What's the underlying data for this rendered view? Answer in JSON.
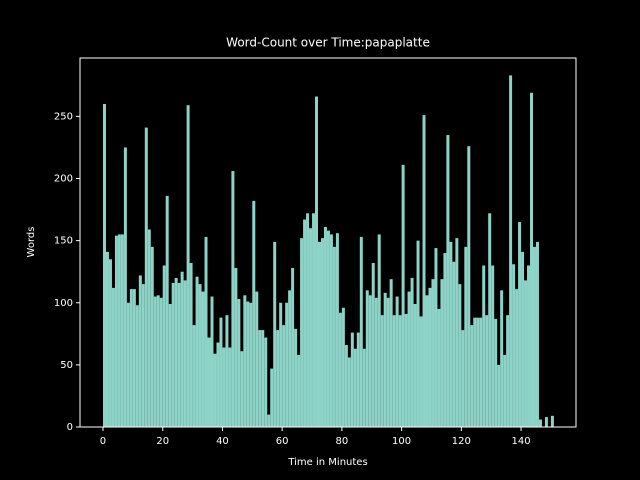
{
  "chart_data": {
    "type": "bar",
    "title": "Word-Count over Time:papaplatte",
    "x_label": "Time in Minutes",
    "y_label": "Words",
    "color": "#8dd3c7",
    "x": [
      0,
      1,
      2,
      3,
      4,
      5,
      6,
      7,
      8,
      9,
      10,
      11,
      12,
      13,
      14,
      15,
      16,
      17,
      18,
      19,
      20,
      21,
      22,
      23,
      24,
      25,
      26,
      27,
      28,
      29,
      30,
      31,
      32,
      33,
      34,
      35,
      36,
      37,
      38,
      39,
      40,
      41,
      42,
      43,
      44,
      45,
      46,
      47,
      48,
      49,
      50,
      51,
      52,
      53,
      54,
      55,
      56,
      57,
      58,
      59,
      60,
      61,
      62,
      63,
      64,
      65,
      66,
      67,
      68,
      69,
      70,
      71,
      72,
      73,
      74,
      75,
      76,
      77,
      78,
      79,
      80,
      81,
      82,
      83,
      84,
      85,
      86,
      87,
      88,
      89,
      90,
      91,
      92,
      93,
      94,
      95,
      96,
      97,
      98,
      99,
      100,
      101,
      102,
      103,
      104,
      105,
      106,
      107,
      108,
      109,
      110,
      111,
      112,
      113,
      114,
      115,
      116,
      117,
      118,
      119,
      120,
      121,
      122,
      123,
      124,
      125,
      126,
      127,
      128,
      129,
      130,
      131,
      132,
      133,
      134,
      135,
      136,
      137,
      138,
      139,
      140,
      141,
      142,
      143,
      144,
      145,
      146,
      147,
      148,
      149,
      150
    ],
    "values": [
      260,
      141,
      135,
      112,
      154,
      155,
      155,
      225,
      100,
      111,
      111,
      98,
      122,
      115,
      241,
      159,
      145,
      105,
      106,
      104,
      130,
      186,
      99,
      116,
      120,
      116,
      125,
      118,
      259,
      132,
      82,
      121,
      115,
      109,
      153,
      72,
      105,
      59,
      68,
      88,
      64,
      90,
      64,
      206,
      128,
      103,
      61,
      106,
      101,
      100,
      182,
      109,
      78,
      78,
      72,
      10,
      47,
      149,
      78,
      100,
      82,
      100,
      110,
      128,
      79,
      58,
      152,
      167,
      172,
      160,
      172,
      266,
      149,
      152,
      161,
      158,
      155,
      145,
      156,
      92,
      96,
      66,
      56,
      76,
      63,
      76,
      153,
      63,
      110,
      106,
      132,
      104,
      155,
      90,
      108,
      104,
      119,
      90,
      105,
      90,
      211,
      91,
      109,
      120,
      99,
      150,
      89,
      251,
      106,
      112,
      119,
      144,
      95,
      119,
      140,
      235,
      149,
      133,
      152,
      115,
      78,
      145,
      226,
      82,
      88,
      88,
      88,
      130,
      90,
      172,
      130,
      87,
      50,
      110,
      58,
      90,
      283,
      131,
      111,
      165,
      141,
      118,
      130,
      269,
      145,
      149,
      6,
      0,
      8,
      0,
      9
    ],
    "xlim": [
      -7.7,
      158.4
    ],
    "ylim": [
      0,
      297
    ],
    "xticks": [
      0,
      20,
      40,
      60,
      80,
      100,
      120,
      140
    ],
    "yticks": [
      0,
      50,
      100,
      150,
      200,
      250
    ]
  }
}
